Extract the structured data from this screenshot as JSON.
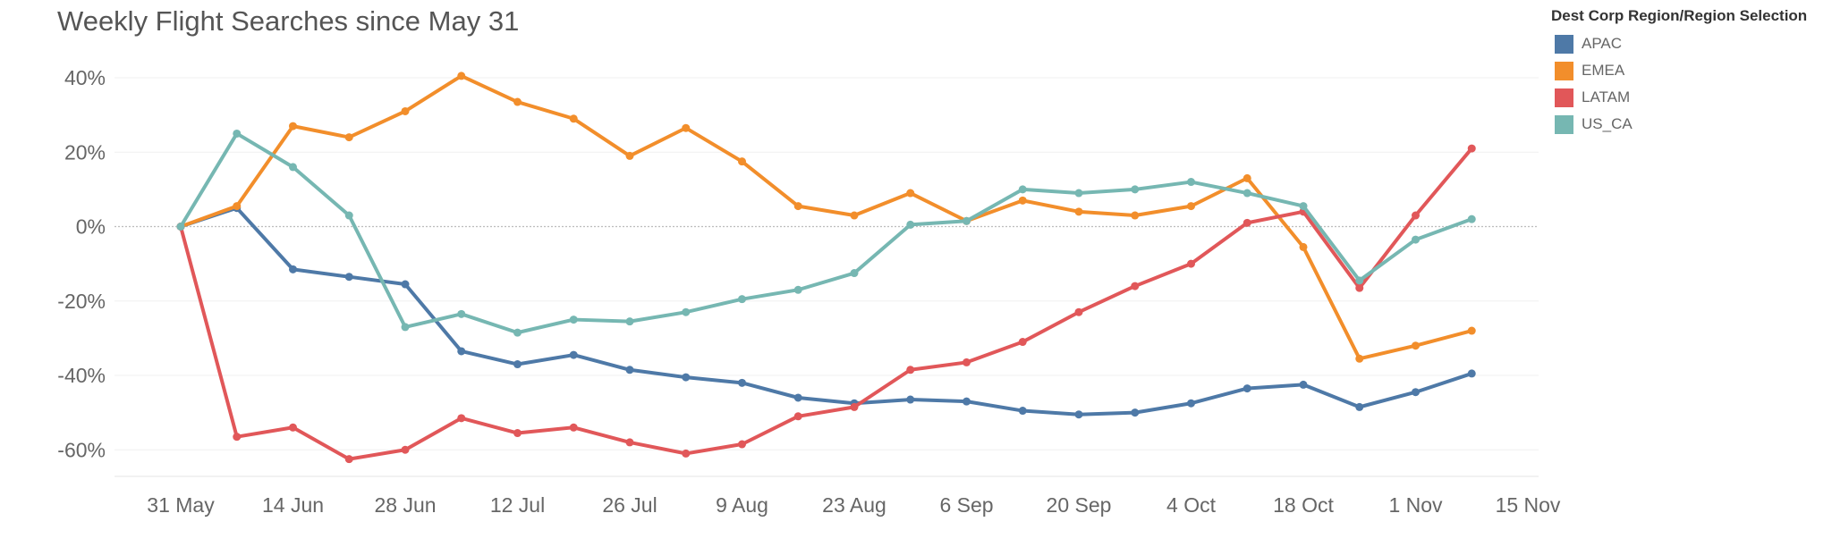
{
  "chart_data": {
    "type": "line",
    "title": "Weekly Flight Searches since May 31",
    "xlabel": "",
    "ylabel": "",
    "ylim": [
      -68,
      45
    ],
    "yticks": [
      40,
      20,
      0,
      -20,
      -40,
      -60
    ],
    "ytick_labels": [
      "40%",
      "20%",
      "0%",
      "-20%",
      "-40%",
      "-60%"
    ],
    "x": [
      "2021-05-31",
      "2021-06-07",
      "2021-06-14",
      "2021-06-21",
      "2021-06-28",
      "2021-07-05",
      "2021-07-12",
      "2021-07-19",
      "2021-07-26",
      "2021-08-02",
      "2021-08-09",
      "2021-08-16",
      "2021-08-23",
      "2021-08-30",
      "2021-09-06",
      "2021-09-13",
      "2021-09-20",
      "2021-09-27",
      "2021-10-04",
      "2021-10-11",
      "2021-10-18",
      "2021-10-25",
      "2021-11-01",
      "2021-11-08"
    ],
    "xtick_positions": [
      0,
      2,
      4,
      6,
      8,
      10,
      12,
      14,
      16,
      18,
      20,
      22,
      24
    ],
    "xtick_labels": [
      "31 May",
      "14 Jun",
      "28 Jun",
      "12 Jul",
      "26 Jul",
      "9 Aug",
      "23 Aug",
      "6 Sep",
      "20 Sep",
      "4 Oct",
      "18 Oct",
      "1 Nov",
      "15 Nov"
    ],
    "legend_title": "Dest Corp Region/Region Selection",
    "legend_position": "top-right",
    "grid": "horizontal",
    "series": [
      {
        "name": "APAC",
        "color": "#4e79a7",
        "values": [
          0,
          5,
          -11.5,
          -13.5,
          -15.5,
          -33.5,
          -37,
          -34.5,
          -38.5,
          -40.5,
          -42,
          -46,
          -47.5,
          -46.5,
          -47,
          -49.5,
          -50.5,
          -50,
          -47.5,
          -43.5,
          -42.5,
          -48.5,
          -44.5,
          -39.5
        ]
      },
      {
        "name": "EMEA",
        "color": "#f28e2b",
        "values": [
          0,
          5.5,
          27,
          24,
          31,
          40.5,
          33.5,
          29,
          19,
          26.5,
          17.5,
          5.5,
          3,
          9,
          1.5,
          7,
          4,
          3,
          5.5,
          13,
          -5.5,
          -35.5,
          -32,
          -28
        ]
      },
      {
        "name": "LATAM",
        "color": "#e15759",
        "values": [
          0,
          -56.5,
          -54,
          -62.5,
          -60,
          -51.5,
          -55.5,
          -54,
          -58,
          -61,
          -58.5,
          -51,
          -48.5,
          -38.5,
          -36.5,
          -31,
          -23,
          -16,
          -10,
          1,
          4,
          -16.5,
          3,
          21
        ]
      },
      {
        "name": "US_CA",
        "color": "#76b7b2",
        "values": [
          0,
          25,
          16,
          3,
          -27,
          -23.5,
          -28.5,
          -25,
          -25.5,
          -23,
          -19.5,
          -17,
          -12.5,
          0.5,
          1.5,
          10,
          9,
          10,
          12,
          9,
          5.5,
          -14.5,
          -3.5,
          2
        ]
      }
    ]
  }
}
